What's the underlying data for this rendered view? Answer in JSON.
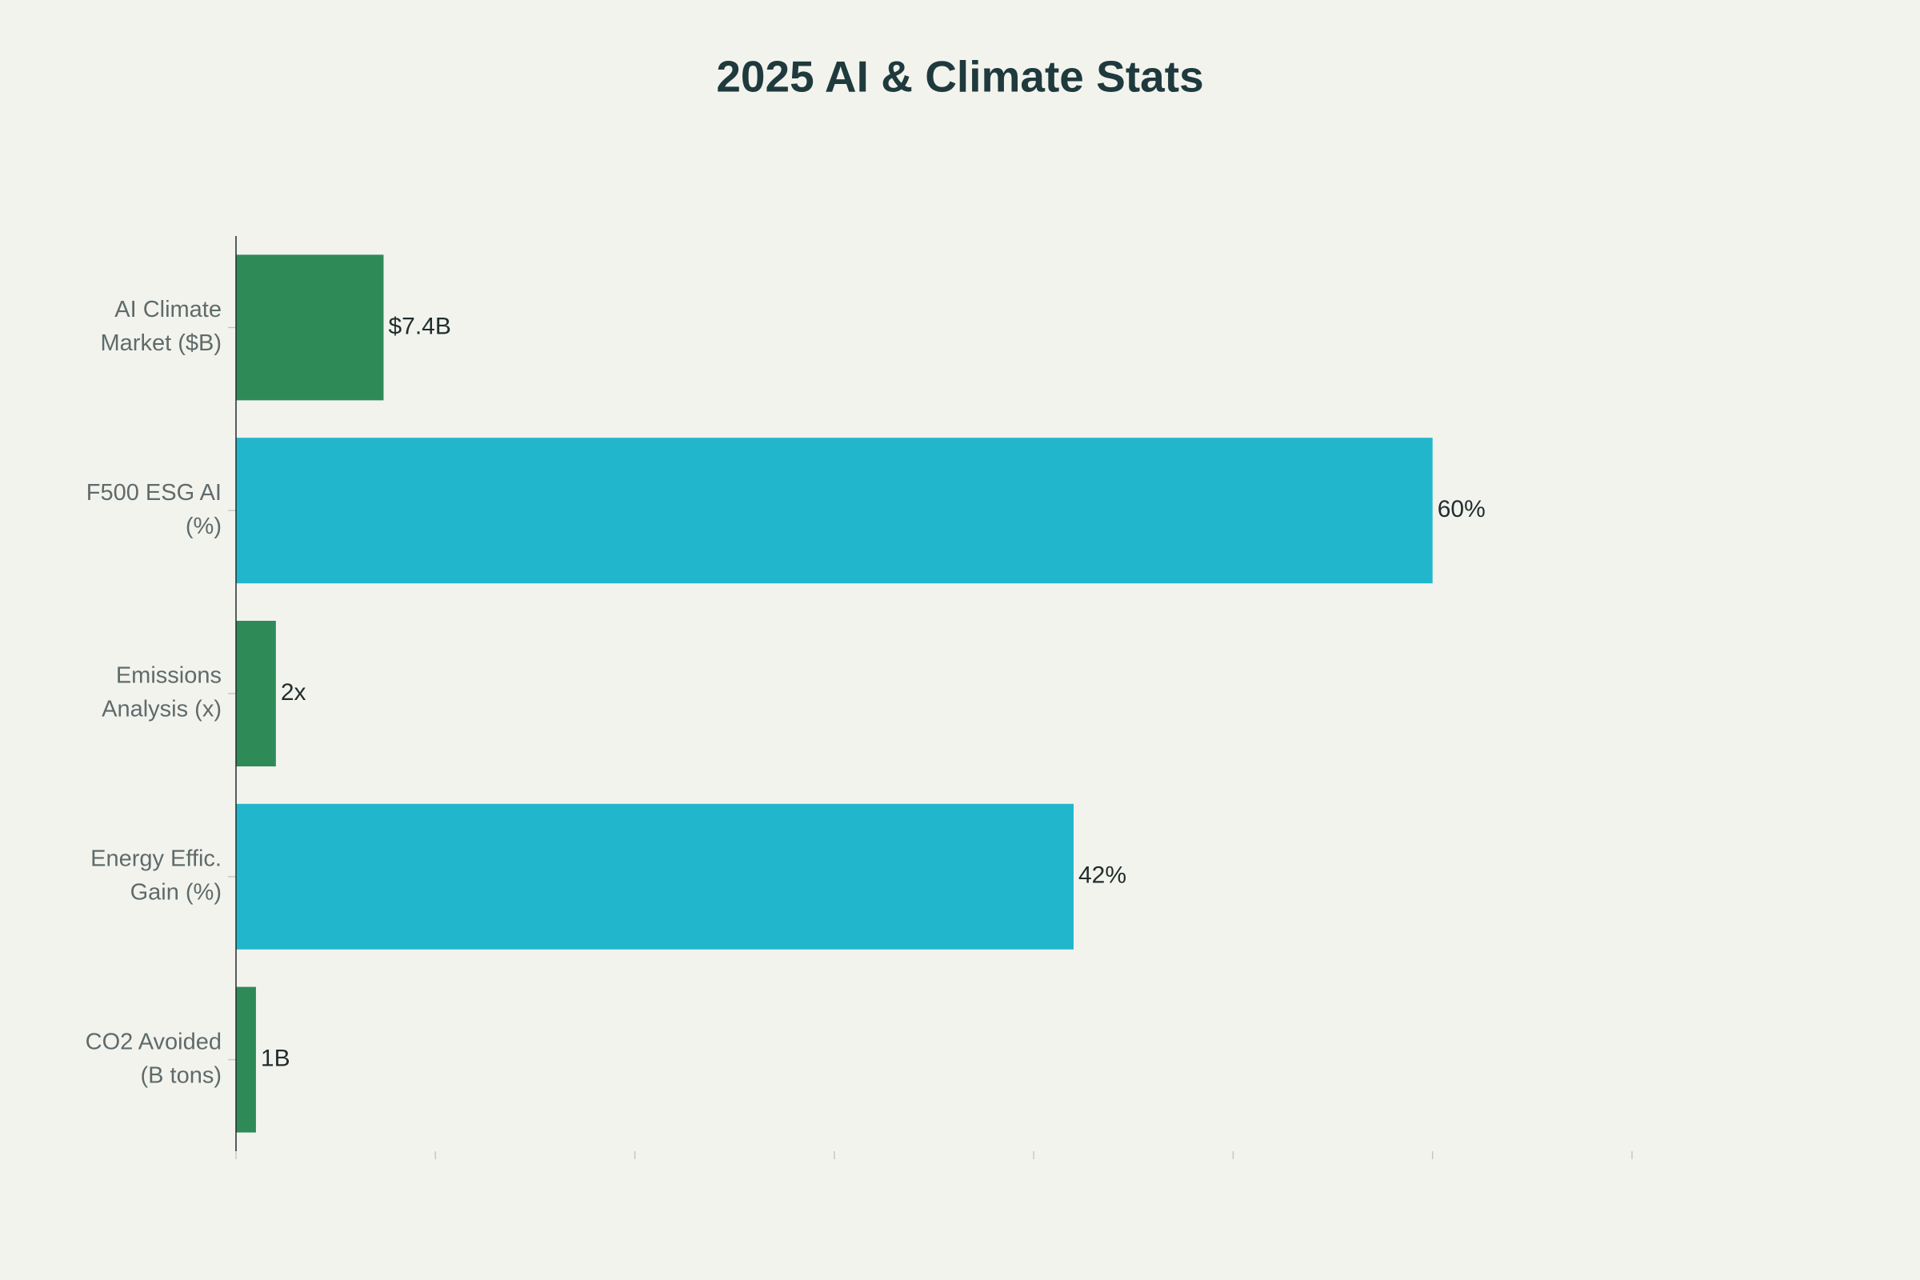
{
  "chart_data": {
    "type": "bar",
    "orientation": "horizontal",
    "title": "2025 AI & Climate Stats",
    "categories": [
      [
        "AI Climate",
        "Market ($B)"
      ],
      [
        "F500 ESG AI",
        "(%)"
      ],
      [
        "Emissions",
        "Analysis (x)"
      ],
      [
        "Energy Effic.",
        "Gain (%)"
      ],
      [
        "CO2 Avoided",
        "(B tons)"
      ]
    ],
    "values": [
      7.4,
      60,
      2,
      42,
      1
    ],
    "value_labels": [
      "$7.4B",
      "60%",
      "2x",
      "42%",
      "1B"
    ],
    "colors": [
      "#2e8b57",
      "#21b6cc",
      "#2e8b57",
      "#21b6cc",
      "#2e8b57"
    ],
    "xlim": [
      0,
      70
    ],
    "xticks": [
      0,
      10,
      20,
      30,
      40,
      50,
      60,
      70
    ],
    "grid": false
  }
}
